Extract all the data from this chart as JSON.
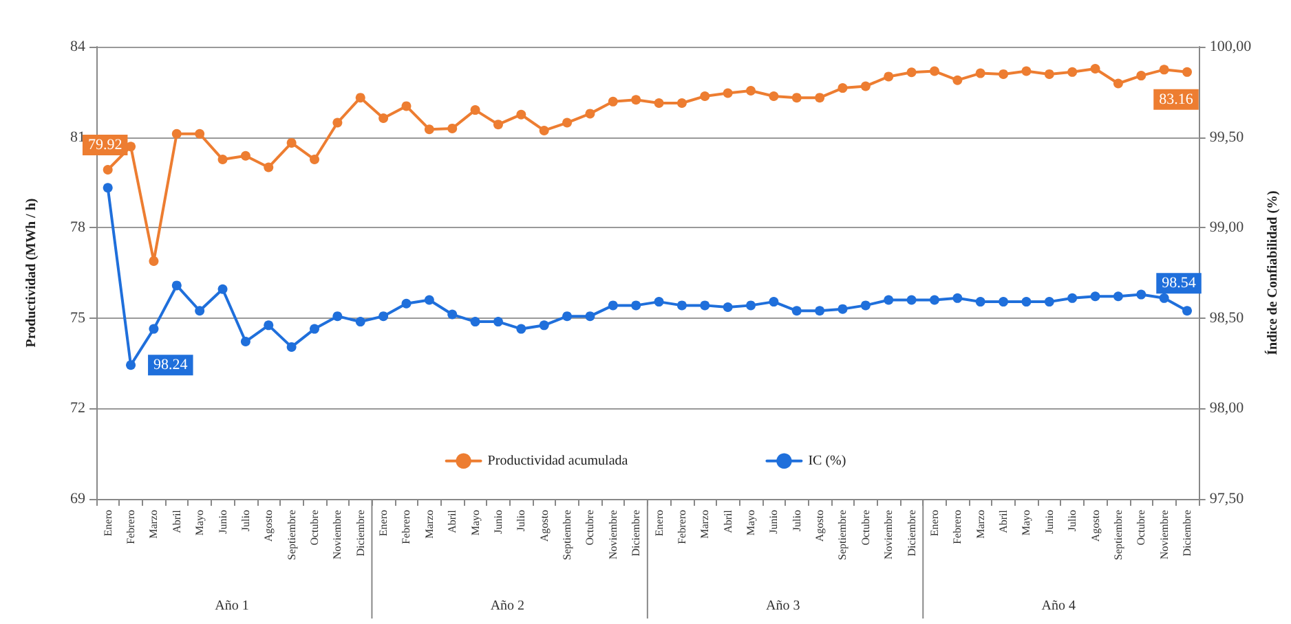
{
  "chart_data": {
    "type": "line",
    "categories": [
      "Enero",
      "Febrero",
      "Marzo",
      "Abril",
      "Mayo",
      "Junio",
      "Julio",
      "Agosto",
      "Septiembre",
      "Octubre",
      "Noviembre",
      "Diciembre",
      "Enero",
      "Febrero",
      "Marzo",
      "Abril",
      "Mayo",
      "Junio",
      "Julio",
      "Agosto",
      "Septiembre",
      "Octubre",
      "Noviembre",
      "Diciembre",
      "Enero",
      "Febrero",
      "Marzo",
      "Abril",
      "Mayo",
      "Junio",
      "Julio",
      "Agosto",
      "Septiembre",
      "Octubre",
      "Noviembre",
      "Diciembre",
      "Enero",
      "Febrero",
      "Marzo",
      "Abril",
      "Mayo",
      "Junio",
      "Julio",
      "Agosto",
      "Septiembre",
      "Octubre",
      "Noviembre",
      "Diciembre"
    ],
    "ylabel": "Productividad (MWh / h)",
    "y2label": "Índice de Confiabilidad (%)",
    "annotations": [
      "Año 1",
      "Año 2",
      "Año 3",
      "Año 4"
    ],
    "series": [
      {
        "name": "Productividad acumulada",
        "color": "#ed7d31",
        "values": [
          79.92,
          80.69,
          76.89,
          81.11,
          81.11,
          80.26,
          80.38,
          80.0,
          80.81,
          80.26,
          81.48,
          82.31,
          81.63,
          82.03,
          81.26,
          81.29,
          81.9,
          81.42,
          81.75,
          81.22,
          81.48,
          81.78,
          82.18,
          82.24,
          82.13,
          82.13,
          82.36,
          82.46,
          82.54,
          82.36,
          82.31,
          82.31,
          82.63,
          82.69,
          83.01,
          83.15,
          83.19,
          82.89,
          83.12,
          83.09,
          83.19,
          83.09,
          83.16,
          83.27,
          82.78,
          83.04,
          83.24,
          83.16
        ],
        "value_labels": [
          "79.92",
          null,
          null,
          null,
          null,
          null,
          null,
          null,
          null,
          null,
          null,
          null,
          null,
          null,
          null,
          null,
          null,
          null,
          null,
          null,
          null,
          null,
          null,
          null,
          null,
          null,
          null,
          null,
          null,
          null,
          null,
          null,
          null,
          null,
          null,
          null,
          null,
          null,
          null,
          null,
          null,
          null,
          null,
          null,
          null,
          null,
          null,
          "83.16"
        ]
      },
      {
        "name": "IC (%)",
        "color": "#1f6fdb",
        "axis": "y2",
        "values": [
          99.22,
          98.24,
          98.44,
          98.68,
          98.54,
          98.66,
          98.37,
          98.46,
          98.34,
          98.44,
          98.51,
          98.48,
          98.51,
          98.58,
          98.6,
          98.52,
          98.48,
          98.48,
          98.44,
          98.46,
          98.51,
          98.51,
          98.57,
          98.57,
          98.59,
          98.57,
          98.57,
          98.56,
          98.57,
          98.59,
          98.54,
          98.54,
          98.55,
          98.57,
          98.6,
          98.6,
          98.6,
          98.61,
          98.59,
          98.59,
          98.59,
          98.59,
          98.61,
          98.62,
          98.62,
          98.63,
          98.61,
          98.54
        ],
        "value_labels": [
          null,
          "98.24",
          null,
          null,
          null,
          null,
          null,
          null,
          null,
          null,
          null,
          null,
          null,
          null,
          null,
          null,
          null,
          null,
          null,
          null,
          null,
          null,
          null,
          null,
          null,
          null,
          null,
          null,
          null,
          null,
          null,
          null,
          null,
          null,
          null,
          null,
          null,
          null,
          null,
          null,
          null,
          null,
          null,
          null,
          null,
          null,
          null,
          "98.54"
        ]
      }
    ],
    "ylim": [
      69,
      84
    ],
    "yticks": [
      69,
      72,
      75,
      78,
      81,
      84
    ],
    "y2lim": [
      97.5,
      100
    ],
    "y2ticks": [
      {
        "value": 97.5,
        "label": "97,50"
      },
      {
        "value": 98,
        "label": "98,00"
      },
      {
        "value": 98.5,
        "label": "98,50"
      },
      {
        "value": 99,
        "label": "99,00"
      },
      {
        "value": 99.5,
        "label": "99,50"
      },
      {
        "value": 100,
        "label": "100,00"
      }
    ],
    "grid": "y",
    "legend": "bottom",
    "marker": "circle",
    "line_style": "solid"
  }
}
